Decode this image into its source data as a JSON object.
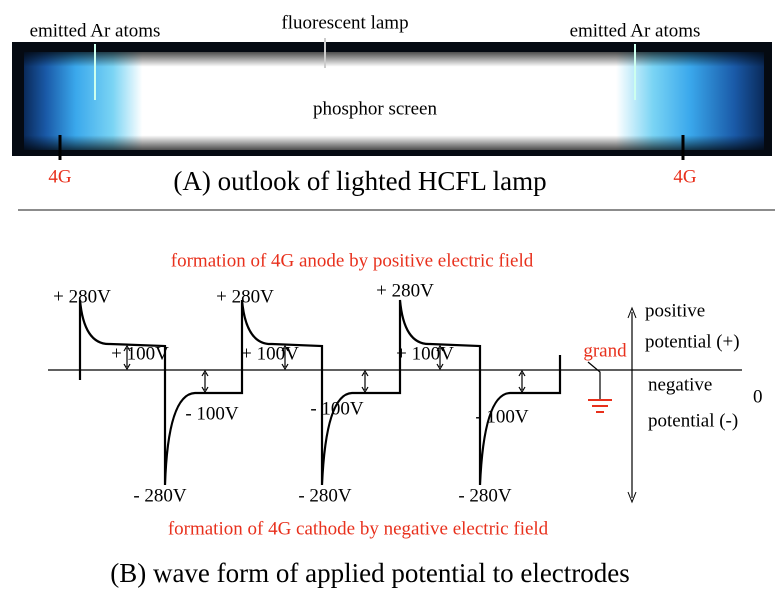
{
  "lamp": {
    "label_left": "emitted Ar atoms",
    "label_center": "fluorescent lamp",
    "label_right": "emitted Ar atoms",
    "screen": "phosphor screen",
    "electrode_left": "4G",
    "electrode_right": "4G",
    "caption": "(A) outlook of lighted HCFL lamp"
  },
  "wave": {
    "title_top": "formation of 4G anode by positive electric field",
    "peaks_pos": [
      "+ 280V",
      "+ 280V",
      "+ 280V"
    ],
    "levels_pos": [
      "+ 100V",
      "+ 100V",
      "+ 100V"
    ],
    "levels_neg": [
      "- 100V",
      "- 100V",
      "- 100V"
    ],
    "peaks_neg": [
      "- 280V",
      "- 280V",
      "- 280V"
    ],
    "ground": "grand",
    "positive_1": "positive",
    "positive_2": "potential (+)",
    "zero": "0",
    "negative_1": "negative",
    "negative_2": "potential (-)",
    "title_bottom": "formation of 4G cathode by negative electric field",
    "caption": "(B) wave form of applied potential to electrodes"
  }
}
